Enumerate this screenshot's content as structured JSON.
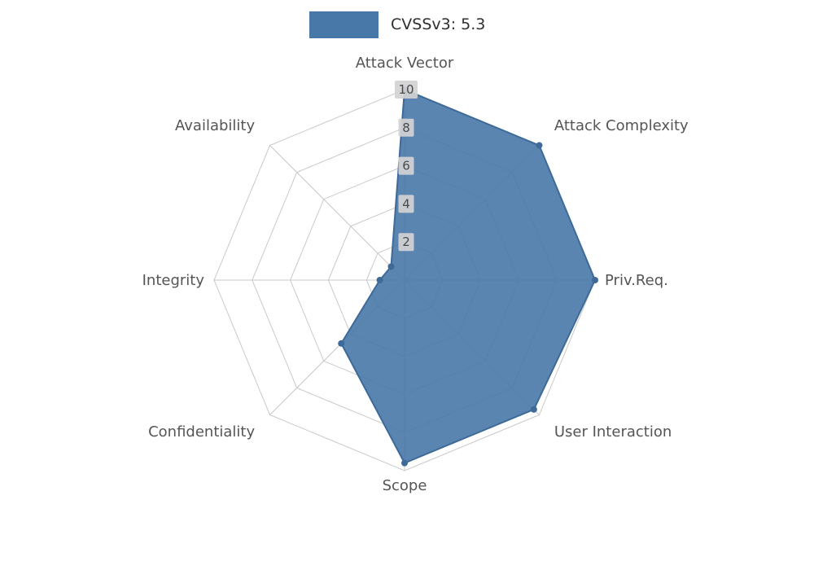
{
  "page": {
    "background": "#ffffff"
  },
  "legend": {
    "label": "CVSSv3: 5.3",
    "swatch_color": "#4878a8"
  },
  "chart_data": {
    "type": "radar",
    "title": "CVSSv3: 5.3",
    "categories": [
      "Attack Vector",
      "Attack Complexity",
      "Priv.Req.",
      "User Interaction",
      "Scope",
      "Confidentiality",
      "Integrity",
      "Availability"
    ],
    "series": [
      {
        "name": "CVSSv3: 5.3",
        "values": [
          10,
          10,
          10,
          9.6,
          9.6,
          4.7,
          1.3,
          1.0
        ]
      }
    ],
    "radial_ticks": [
      2,
      4,
      6,
      8,
      10
    ],
    "r_max": 10,
    "grid": true,
    "grid_shape": "polygon",
    "start_axis": "top",
    "direction": "clockwise",
    "legend_position": "top-center",
    "colors": {
      "fill": "#4878a8",
      "fill_opacity": 0.9,
      "edge": "#3d6a99",
      "grid": "#c9c9c9",
      "axis_label": "#555555",
      "tick_label": "#4a4a4a",
      "tick_box": "#d2d2d2"
    }
  }
}
